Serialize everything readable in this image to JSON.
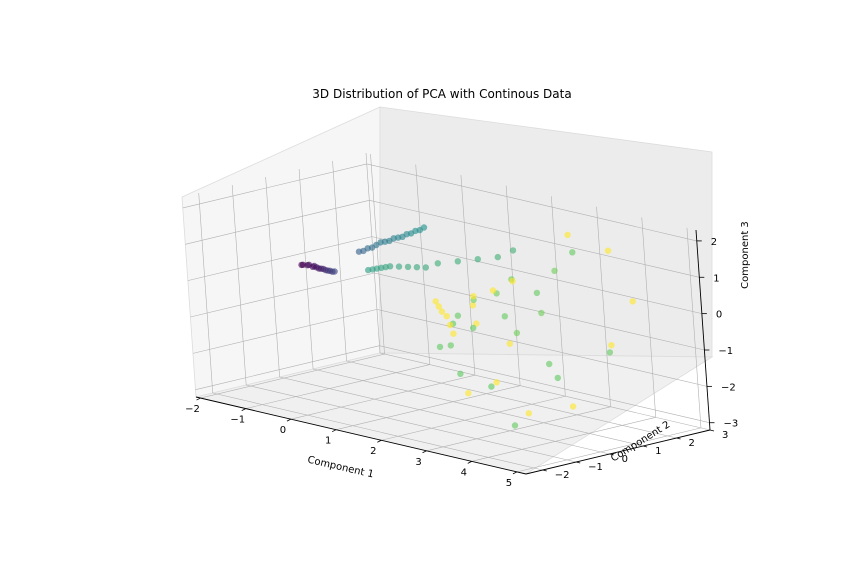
{
  "chart_data": {
    "type": "scatter",
    "projection": "3d",
    "title": "3D Distribution of PCA with Continous Data",
    "xlabel": "Component 1",
    "ylabel": "Component 2",
    "zlabel": "Component 3",
    "xlim": [
      -2.1,
      5.2
    ],
    "ylim": [
      -2.5,
      3.0
    ],
    "zlim": [
      -3.2,
      2.3
    ],
    "xticks": [
      "−2",
      "−1",
      "0",
      "1",
      "2",
      "3",
      "4",
      "5"
    ],
    "yticks": [
      "−2",
      "−1",
      "0",
      "1",
      "2",
      "3"
    ],
    "zticks": [
      "−3",
      "−2",
      "−1",
      "0",
      "1",
      "2"
    ],
    "grid": true,
    "colormap": "viridis",
    "colors": {
      "low": "#440154",
      "mid": "#21918c",
      "high": "#fde725",
      "pane": "#f2f2f2",
      "grid": "#b0b0b0"
    },
    "series": [
      {
        "points": [
          [
            -1.55,
            0.2,
            0.0,
            0.0
          ],
          [
            -1.45,
            0.2,
            0.02,
            0.02
          ],
          [
            -1.4,
            0.18,
            0.05,
            0.03
          ],
          [
            -1.35,
            0.22,
            0.0,
            0.03
          ],
          [
            -1.3,
            0.2,
            0.04,
            0.05
          ],
          [
            -1.25,
            0.2,
            0.02,
            0.05
          ],
          [
            -1.2,
            0.2,
            0.0,
            0.06
          ],
          [
            -1.15,
            0.2,
            0.01,
            0.08
          ],
          [
            -1.1,
            0.2,
            0.02,
            0.1
          ],
          [
            -1.05,
            0.2,
            0.0,
            0.12
          ],
          [
            -1.0,
            0.2,
            0.0,
            0.14
          ],
          [
            -0.95,
            0.2,
            0.01,
            0.16
          ],
          [
            -0.9,
            0.2,
            0.0,
            0.18
          ],
          [
            -0.85,
            0.2,
            0.02,
            0.2
          ],
          [
            -1.6,
            0.22,
            -0.02,
            0.0
          ],
          [
            -0.5,
            0.5,
            0.6,
            0.3
          ],
          [
            -0.4,
            0.5,
            0.65,
            0.32
          ],
          [
            -0.3,
            0.5,
            0.75,
            0.34
          ],
          [
            -0.2,
            0.5,
            0.8,
            0.36
          ],
          [
            -0.1,
            0.5,
            0.9,
            0.38
          ],
          [
            0.0,
            0.5,
            1.0,
            0.4
          ],
          [
            0.1,
            0.5,
            1.05,
            0.41
          ],
          [
            0.2,
            0.5,
            1.1,
            0.42
          ],
          [
            0.3,
            0.5,
            1.2,
            0.43
          ],
          [
            0.4,
            0.5,
            1.25,
            0.44
          ],
          [
            0.5,
            0.5,
            1.3,
            0.45
          ],
          [
            0.6,
            0.5,
            1.4,
            0.46
          ],
          [
            0.7,
            0.5,
            1.45,
            0.47
          ],
          [
            0.8,
            0.5,
            1.55,
            0.48
          ],
          [
            0.9,
            0.5,
            1.6,
            0.49
          ],
          [
            1.0,
            0.5,
            1.7,
            0.5
          ],
          [
            -0.4,
            0.6,
            0.1,
            0.55
          ],
          [
            -0.3,
            0.6,
            0.15,
            0.56
          ],
          [
            -0.2,
            0.6,
            0.2,
            0.56
          ],
          [
            -0.1,
            0.6,
            0.25,
            0.57
          ],
          [
            0.0,
            0.6,
            0.3,
            0.58
          ],
          [
            0.1,
            0.6,
            0.35,
            0.58
          ],
          [
            0.3,
            0.6,
            0.4,
            0.59
          ],
          [
            0.5,
            0.6,
            0.45,
            0.6
          ],
          [
            0.7,
            0.6,
            0.5,
            0.6
          ],
          [
            0.9,
            0.6,
            0.55,
            0.6
          ],
          [
            1.1,
            0.7,
            0.7,
            0.62
          ],
          [
            1.4,
            0.9,
            0.8,
            0.62
          ],
          [
            1.7,
            1.1,
            0.9,
            0.62
          ],
          [
            2.0,
            1.3,
            1.0,
            0.64
          ],
          [
            2.2,
            1.5,
            1.2,
            0.64
          ],
          [
            1.5,
            0.5,
            -0.8,
            0.75
          ],
          [
            1.7,
            0.4,
            -0.5,
            0.76
          ],
          [
            2.0,
            0.5,
            0.0,
            0.78
          ],
          [
            2.1,
            0.3,
            -0.7,
            0.76
          ],
          [
            2.3,
            0.8,
            0.2,
            0.78
          ],
          [
            2.6,
            0.6,
            -0.3,
            0.76
          ],
          [
            2.5,
            1.0,
            0.6,
            0.78
          ],
          [
            2.9,
            1.2,
            0.3,
            0.76
          ],
          [
            3.1,
            1.5,
            0.9,
            0.78
          ],
          [
            3.3,
            1.8,
            1.4,
            0.76
          ],
          [
            3.0,
            0.4,
            -0.6,
            0.78
          ],
          [
            3.6,
            0.5,
            -1.3,
            0.76
          ],
          [
            2.2,
            -0.3,
            -1.8,
            0.75
          ],
          [
            2.8,
            -0.2,
            -2.0,
            0.75
          ],
          [
            3.5,
            -0.5,
            -2.8,
            0.76
          ],
          [
            4.0,
            0.2,
            -1.5,
            0.75
          ],
          [
            4.6,
            1.0,
            -0.8,
            0.76
          ],
          [
            1.4,
            0.2,
            -1.4,
            0.75
          ],
          [
            1.8,
            0.0,
            -1.2,
            0.76
          ],
          [
            3.2,
            0.9,
            -0.1,
            0.78
          ],
          [
            1.3,
            0.3,
            -0.2,
            1.0
          ],
          [
            1.4,
            0.25,
            -0.3,
            1.0
          ],
          [
            1.5,
            0.2,
            -0.4,
            1.0
          ],
          [
            1.6,
            0.2,
            -0.5,
            1.0
          ],
          [
            1.7,
            0.15,
            -0.7,
            1.0
          ],
          [
            1.8,
            0.1,
            -0.9,
            1.0
          ],
          [
            2.0,
            0.5,
            0.1,
            1.0
          ],
          [
            2.3,
            0.7,
            0.3,
            1.0
          ],
          [
            2.6,
            0.9,
            0.6,
            1.0
          ],
          [
            2.5,
            -0.5,
            -2.2,
            1.0
          ],
          [
            3.0,
            -0.3,
            -1.8,
            1.0
          ],
          [
            3.3,
            1.7,
            1.9,
            1.0
          ],
          [
            3.8,
            2.2,
            1.5,
            1.0
          ],
          [
            4.2,
            2.3,
            0.2,
            1.0
          ],
          [
            4.8,
            0.8,
            -0.5,
            1.0
          ],
          [
            4.3,
            0.2,
            -2.2,
            1.0
          ],
          [
            3.6,
            -0.2,
            -2.5,
            1.0
          ],
          [
            2.9,
            0.3,
            -0.9,
            1.0
          ],
          [
            2.1,
            0.4,
            -0.6,
            1.0
          ],
          [
            1.9,
            0.6,
            -0.2,
            1.0
          ]
        ]
      }
    ]
  }
}
